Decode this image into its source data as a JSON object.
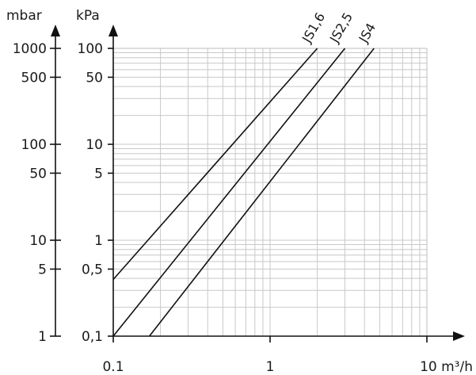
{
  "chart_data": {
    "type": "line",
    "title": "",
    "xscale": "log",
    "yscale": "log",
    "x_axis": {
      "label": "10 m³/h",
      "ticks": [
        {
          "value": 0.1,
          "label": "0.1"
        },
        {
          "value": 1,
          "label": "1"
        }
      ],
      "range": [
        0.1,
        10
      ]
    },
    "y_axis_left": {
      "unit": "mbar",
      "ticks": [
        {
          "value": 1,
          "label": "1"
        },
        {
          "value": 5,
          "label": "5"
        },
        {
          "value": 10,
          "label": "10"
        },
        {
          "value": 50,
          "label": "50"
        },
        {
          "value": 100,
          "label": "100"
        },
        {
          "value": 500,
          "label": "500"
        },
        {
          "value": 1000,
          "label": "1000"
        }
      ],
      "range": [
        1,
        1000
      ]
    },
    "y_axis_right": {
      "unit": "kPa",
      "ticks": [
        {
          "value": 0.1,
          "label": "0,1"
        },
        {
          "value": 0.5,
          "label": "0,5"
        },
        {
          "value": 1,
          "label": "1"
        },
        {
          "value": 5,
          "label": "5"
        },
        {
          "value": 10,
          "label": "10"
        },
        {
          "value": 50,
          "label": "50"
        },
        {
          "value": 100,
          "label": "100"
        }
      ],
      "range": [
        0.1,
        100
      ]
    },
    "grid": true,
    "series": [
      {
        "name": "JS1,6",
        "x": [
          0.1,
          2.0
        ],
        "y_kpa": [
          0.39,
          100
        ]
      },
      {
        "name": "JS2,5",
        "x": [
          0.1,
          3.0
        ],
        "y_kpa": [
          0.1,
          100
        ]
      },
      {
        "name": "JS4",
        "x": [
          0.17,
          4.6
        ],
        "y_kpa": [
          0.1,
          100
        ]
      }
    ]
  }
}
